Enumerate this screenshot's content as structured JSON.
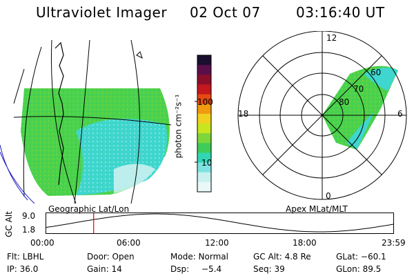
{
  "header": {
    "instrument": "Ultraviolet Imager",
    "date": "02 Oct 07",
    "time": "03:16:40 UT"
  },
  "geo_panel": {
    "label": "Geographic Lat/Lon",
    "colors": {
      "aurora_green": "#4cd24c",
      "aurora_cyan": "#3fd6cf",
      "aurora_light": "#c9f1ef"
    }
  },
  "colorbar": {
    "unit_label": "photon cm⁻²s⁻¹",
    "tick_labels": [
      "100",
      "10"
    ],
    "colors": [
      "#1a0f2e",
      "#5a0f4a",
      "#8a0f2a",
      "#c2181e",
      "#e54a10",
      "#f09a10",
      "#f0d020",
      "#c8e620",
      "#7ed63a",
      "#3fcc58",
      "#32d6b4",
      "#7ee3e0",
      "#c9f1ef",
      "#eaf8f8"
    ]
  },
  "polar_panel": {
    "label": "Apex MLat/MLT",
    "mlt_labels": {
      "top": "12",
      "bottom": "0",
      "left": "18",
      "right": "6"
    },
    "lat_labels": [
      "60",
      "70",
      "80"
    ]
  },
  "altitude_plot": {
    "axis_label": "GC Alt",
    "y_ticks": [
      "9.0",
      "1.8"
    ],
    "x_ticks": [
      "00:00",
      "06:00",
      "12:00",
      "18:00",
      "23:59"
    ],
    "current_time_hours": 3.28,
    "marker_color": "#e00000"
  },
  "status": {
    "flt": "Flt: LBHL",
    "door": "Door: Open",
    "mode": "Mode: Normal",
    "gc_alt": "GC Alt: 4.8 Re",
    "glat": "GLat: −60.1",
    "ip": "IP: 36.0",
    "gain": "Gain: 14",
    "dsp_label": "Dsp:",
    "dsp_value": "−5.4",
    "seq": "Seq: 39",
    "glon": "GLon: 89.5"
  }
}
